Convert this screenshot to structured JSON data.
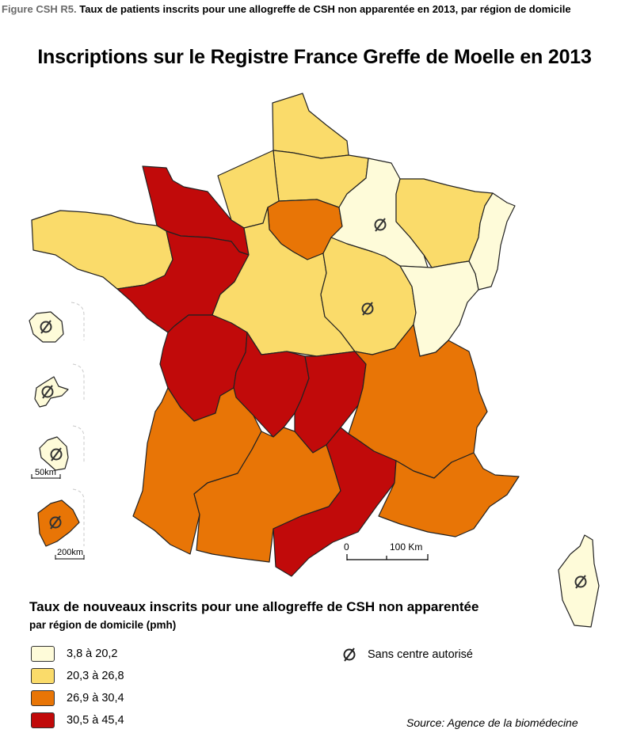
{
  "caption": {
    "figure_label": "Figure CSH R5.",
    "text": "Taux de patients inscrits pour une allogreffe de CSH non apparentée en 2013, par région de domicile"
  },
  "title": "Inscriptions sur le Registre France Greffe de Moelle en 2013",
  "legend": {
    "title": "Taux de nouveaux inscrits pour une allogreffe de CSH non apparentée",
    "subtitle": "par région de domicile (pmh)",
    "classes": [
      {
        "label": "3,8 à 20,2",
        "color": "#fefbd9"
      },
      {
        "label": "20,3 à 26,8",
        "color": "#fadb6a"
      },
      {
        "label": "26,9 à 30,4",
        "color": "#e87506"
      },
      {
        "label": "30,5 à 45,4",
        "color": "#c10a0a"
      }
    ],
    "no_centre_label": "Sans centre autorisé"
  },
  "scale_main": {
    "start": "0",
    "end": "100 Km"
  },
  "scale_inset_50": "50km",
  "scale_inset_200": "200km",
  "source": "Source: Agence de la biomédecine",
  "regions": [
    {
      "name": "Nord-Pas-de-Calais",
      "class": 1,
      "no_centre": false
    },
    {
      "name": "Picardie",
      "class": 1,
      "no_centre": false
    },
    {
      "name": "Haute-Normandie",
      "class": 1,
      "no_centre": false
    },
    {
      "name": "Basse-Normandie",
      "class": 3,
      "no_centre": false
    },
    {
      "name": "Bretagne",
      "class": 1,
      "no_centre": false
    },
    {
      "name": "Pays de la Loire",
      "class": 3,
      "no_centre": false
    },
    {
      "name": "Ile-de-France",
      "class": 2,
      "no_centre": false
    },
    {
      "name": "Centre",
      "class": 1,
      "no_centre": false
    },
    {
      "name": "Champagne-Ardenne",
      "class": 0,
      "no_centre": true
    },
    {
      "name": "Lorraine",
      "class": 1,
      "no_centre": false
    },
    {
      "name": "Alsace",
      "class": 0,
      "no_centre": false
    },
    {
      "name": "Bourgogne",
      "class": 1,
      "no_centre": true
    },
    {
      "name": "Franche-Comté",
      "class": 0,
      "no_centre": false
    },
    {
      "name": "Poitou-Charentes",
      "class": 3,
      "no_centre": false
    },
    {
      "name": "Limousin",
      "class": 3,
      "no_centre": false
    },
    {
      "name": "Auvergne",
      "class": 3,
      "no_centre": false
    },
    {
      "name": "Rhône-Alpes",
      "class": 2,
      "no_centre": false
    },
    {
      "name": "Aquitaine",
      "class": 2,
      "no_centre": false
    },
    {
      "name": "Midi-Pyrénées",
      "class": 2,
      "no_centre": false
    },
    {
      "name": "Languedoc-Roussillon",
      "class": 3,
      "no_centre": false
    },
    {
      "name": "Provence-Alpes-Côte d'Azur",
      "class": 2,
      "no_centre": false
    },
    {
      "name": "Corse",
      "class": 0,
      "no_centre": true
    },
    {
      "name": "Guadeloupe",
      "class": 0,
      "no_centre": true
    },
    {
      "name": "Martinique",
      "class": 0,
      "no_centre": true
    },
    {
      "name": "Guyane",
      "class": 0,
      "no_centre": true
    },
    {
      "name": "La Réunion",
      "class": 2,
      "no_centre": true
    }
  ]
}
